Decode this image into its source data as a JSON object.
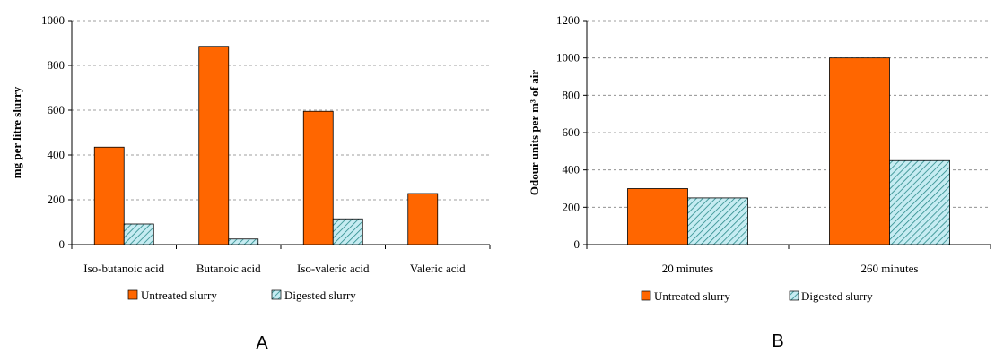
{
  "colors": {
    "untreated": "#ff6600",
    "digested": "#c6ecf2",
    "hatch": "#2a8a8a",
    "grid": "#808080"
  },
  "chart_data": [
    {
      "type": "bar",
      "panel_label": "A",
      "ylabel": "mg per litre slurry",
      "ylim": [
        0,
        1000
      ],
      "yticks": [
        "0",
        "200",
        "400",
        "600",
        "800",
        "1000"
      ],
      "categories": [
        "Iso-butanoic acid",
        "Butanoic acid",
        "Iso-valeric acid",
        "Valeric acid"
      ],
      "series": [
        {
          "name": "Untreated slurry",
          "values": [
            435,
            885,
            595,
            228
          ]
        },
        {
          "name": "Digested slurry",
          "values": [
            92,
            25,
            115,
            0
          ]
        }
      ],
      "grid": "horizontal dashed",
      "legend_position": "bottom"
    },
    {
      "type": "bar",
      "panel_label": "B",
      "ylabel": "Odour units per m³ of air",
      "ylim": [
        0,
        1200
      ],
      "yticks": [
        "0",
        "200",
        "400",
        "600",
        "800",
        "1000",
        "1200"
      ],
      "categories": [
        "20 minutes",
        "260 minutes"
      ],
      "series": [
        {
          "name": "Untreated slurry",
          "values": [
            300,
            1000
          ]
        },
        {
          "name": "Digested slurry",
          "values": [
            250,
            450
          ]
        }
      ],
      "grid": "horizontal dashed",
      "legend_position": "bottom"
    }
  ]
}
